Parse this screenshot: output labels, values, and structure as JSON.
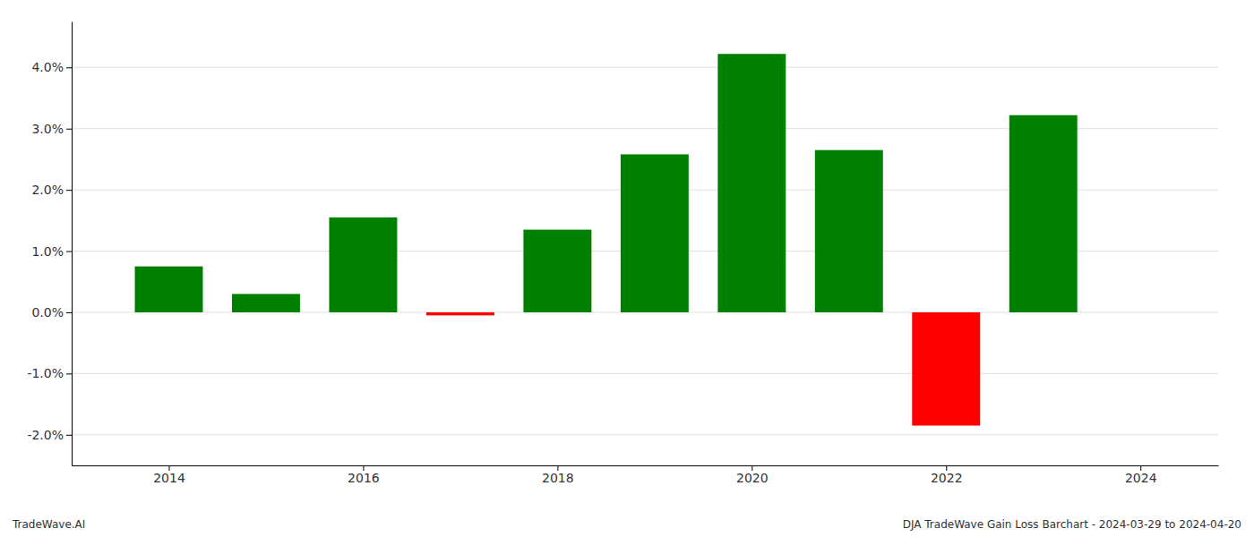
{
  "chart_data": {
    "type": "bar",
    "x": [
      2014,
      2015,
      2016,
      2017,
      2018,
      2019,
      2020,
      2021,
      2022,
      2023
    ],
    "values": [
      0.75,
      0.3,
      1.55,
      -0.05,
      1.35,
      2.58,
      4.22,
      2.65,
      -1.85,
      3.22
    ],
    "colors": [
      "#008000",
      "#008000",
      "#008000",
      "#ff0000",
      "#008000",
      "#008000",
      "#008000",
      "#008000",
      "#ff0000",
      "#008000"
    ],
    "xlim": [
      2013.0,
      2024.8
    ],
    "xticks": [
      2014,
      2016,
      2018,
      2020,
      2022,
      2024
    ],
    "ylim": [
      -2.5,
      4.75
    ],
    "yticks": [
      {
        "value": -2.0,
        "label": "-2.0%"
      },
      {
        "value": -1.0,
        "label": "-1.0%"
      },
      {
        "value": 0.0,
        "label": "0.0%"
      },
      {
        "value": 1.0,
        "label": "1.0%"
      },
      {
        "value": 2.0,
        "label": "2.0%"
      },
      {
        "value": 3.0,
        "label": "3.0%"
      },
      {
        "value": 4.0,
        "label": "4.0%"
      }
    ],
    "grid": true,
    "annotations": [
      "TradeWave.AI",
      "DJA TradeWave Gain Loss Barchart - 2024-03-29 to 2024-04-20"
    ]
  }
}
